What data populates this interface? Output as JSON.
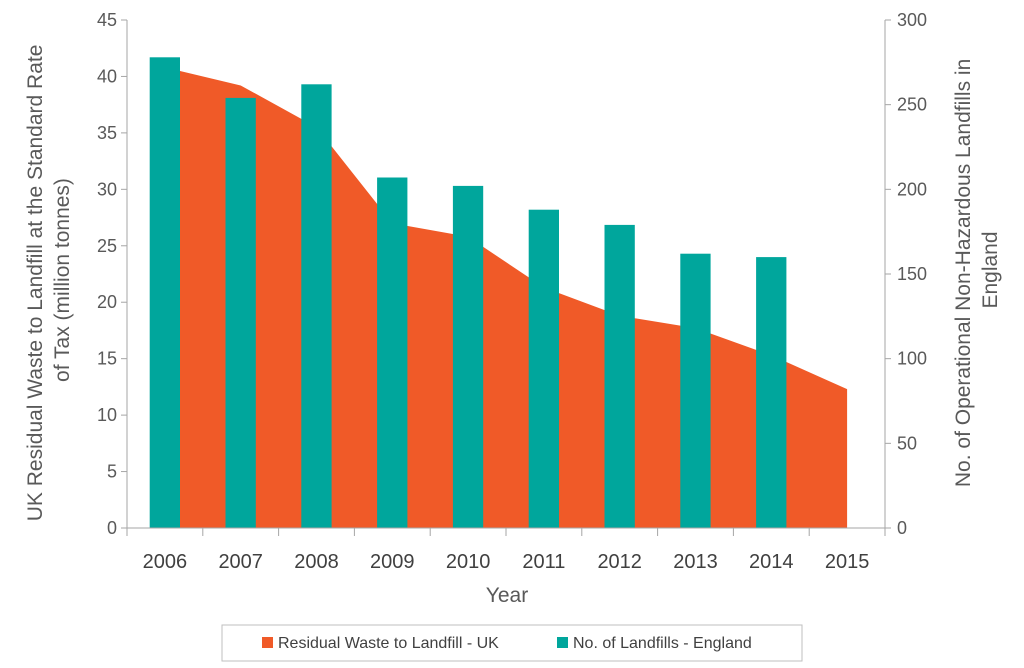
{
  "chart_data": {
    "type": "bar",
    "categories": [
      "2006",
      "2007",
      "2008",
      "2009",
      "2010",
      "2011",
      "2012",
      "2013",
      "2014",
      "2015"
    ],
    "xlabel": "Year",
    "ylabel_left_lines": [
      "UK Residual Waste to Landfill at the Standard Rate",
      "of Tax (million tonnes)"
    ],
    "ylabel_right_lines": [
      "No. of Operational Non-Hazardous Landfills in",
      "England"
    ],
    "ylim_left": [
      0,
      45
    ],
    "yticks_left": [
      0,
      5,
      10,
      15,
      20,
      25,
      30,
      35,
      40,
      45
    ],
    "ylim_right": [
      0,
      300
    ],
    "yticks_right": [
      0,
      50,
      100,
      150,
      200,
      250,
      300
    ],
    "grid": false,
    "legend_position": "bottom",
    "series": [
      {
        "name": "Residual Waste to Landfill - UK",
        "type": "area",
        "axis": "left",
        "color": "#f05a28",
        "values": [
          40.8,
          39.2,
          35.5,
          27.0,
          25.8,
          21.3,
          18.8,
          17.7,
          15.3,
          12.3
        ]
      },
      {
        "name": "No. of Landfills - England",
        "type": "bar",
        "axis": "right",
        "color": "#00a69c",
        "values": [
          278,
          254,
          262,
          207,
          202,
          188,
          179,
          162,
          160,
          null
        ]
      }
    ]
  }
}
